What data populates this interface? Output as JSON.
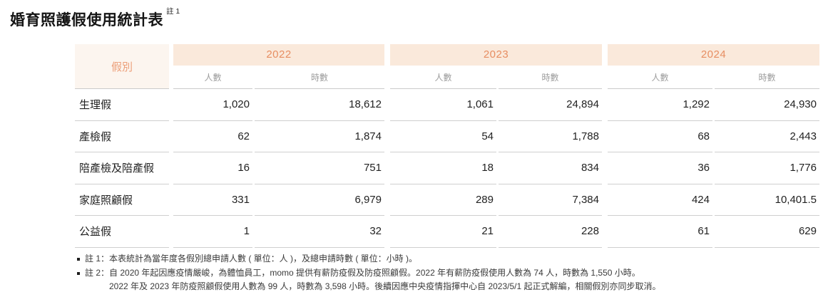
{
  "title": {
    "text": "婚育照護假使用統計表",
    "superscript": "註 1"
  },
  "table": {
    "leave_type_header": "假別",
    "year_groups": [
      {
        "year": "2022",
        "people_label": "人數",
        "hours_label": "時數"
      },
      {
        "year": "2023",
        "people_label": "人數",
        "hours_label": "時數"
      },
      {
        "year": "2024",
        "people_label": "人數",
        "hours_label": "時數"
      }
    ],
    "rows": [
      {
        "label": "生理假",
        "cells": [
          "1,020",
          "18,612",
          "1,061",
          "24,894",
          "1,292",
          "24,930"
        ]
      },
      {
        "label": "產檢假",
        "cells": [
          "62",
          "1,874",
          "54",
          "1,788",
          "68",
          "2,443"
        ]
      },
      {
        "label": "陪產檢及陪產假",
        "cells": [
          "16",
          "751",
          "18",
          "834",
          "36",
          "1,776"
        ]
      },
      {
        "label": "家庭照顧假",
        "cells": [
          "331",
          "6,979",
          "289",
          "7,384",
          "424",
          "10,401.5"
        ]
      },
      {
        "label": "公益假",
        "cells": [
          "1",
          "32",
          "21",
          "228",
          "61",
          "629"
        ]
      }
    ]
  },
  "notes": [
    {
      "text": "註 1：本表統計為當年度各假別總申請人數 ( 單位：人 )，及總申請時數 ( 單位：小時 )。"
    },
    {
      "text": "註 2：自 2020 年起因應疫情嚴峻，為體恤員工，momo 提供有薪防疫假及防疫照顧假。2022 年有薪防疫假使用人數為 74 人，時數為 1,550 小時。"
    },
    {
      "text": "2022 年及 2023 年防疫照顧假使用人數為 99 人，時數為 3,598 小時。後續因應中央疫情指揮中心自 2023/5/1 起正式解編，相關假別亦同步取消。"
    }
  ],
  "colors": {
    "year_band_bg": "#FAE9DB",
    "year_text": "#E78E62",
    "leave_type_bg": "#FCF5EF",
    "leave_type_text": "#EC9E78",
    "subheader_text": "#9C9C9C",
    "row_border": "#CFCFCF",
    "data_text": "#222222",
    "note_text": "#3A3A3A"
  }
}
